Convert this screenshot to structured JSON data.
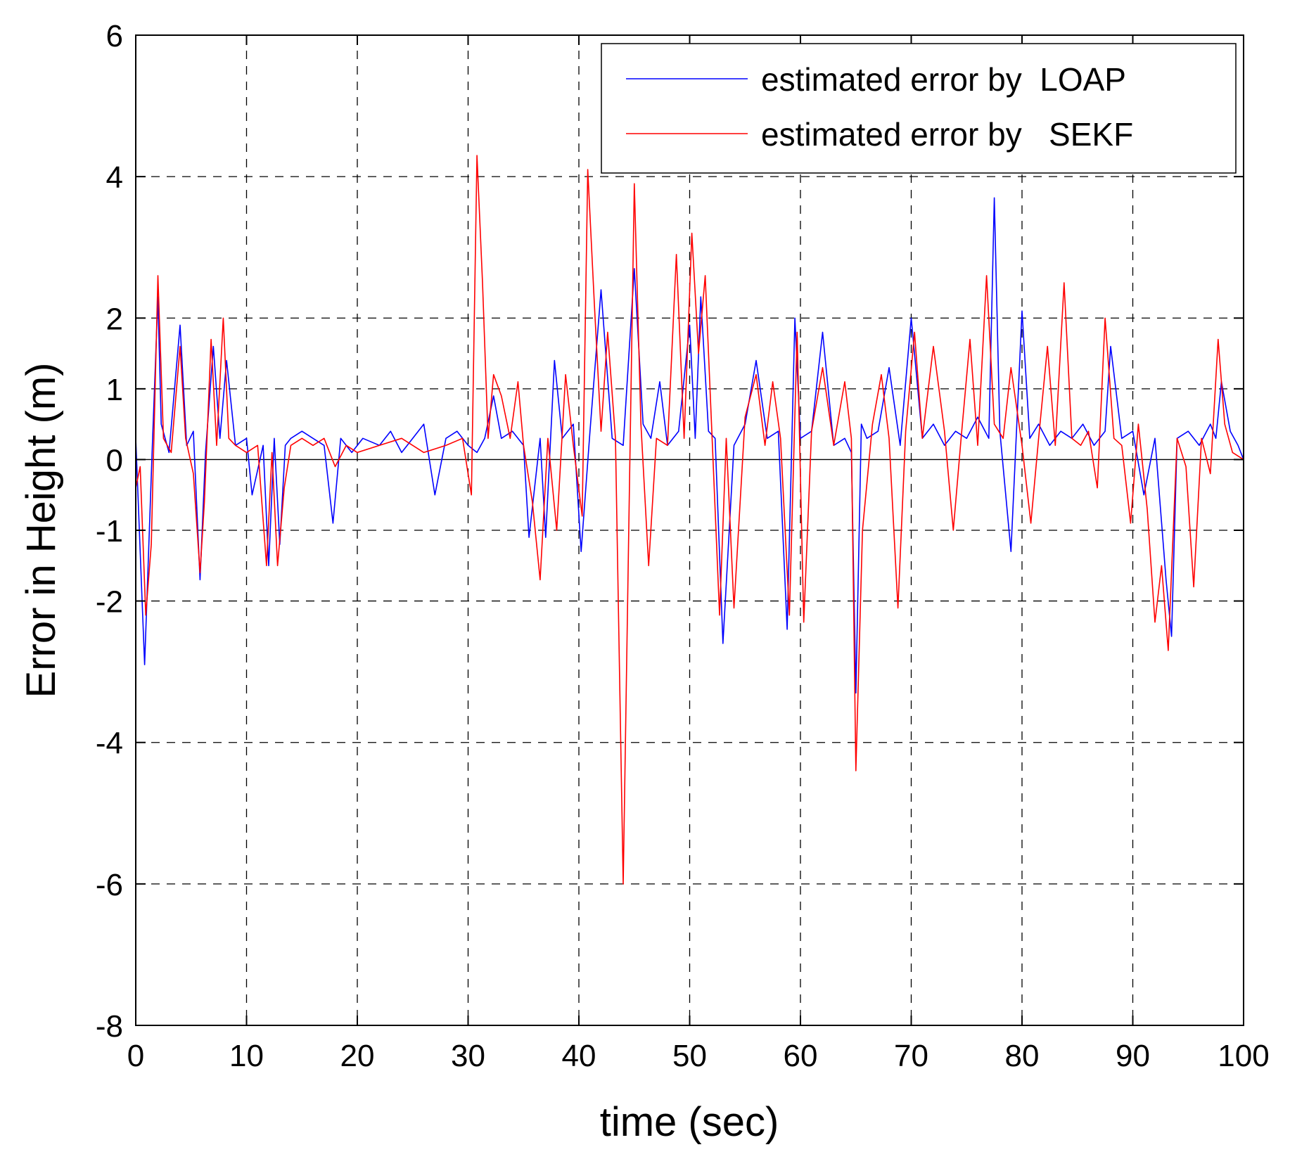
{
  "chart_data": {
    "type": "line",
    "title": "",
    "xlabel": "time (sec)",
    "ylabel": "Error in Height (m)",
    "xlim": [
      0,
      100
    ],
    "ylim": [
      -8,
      6
    ],
    "grid": true,
    "legend_position": "top-right",
    "xticks": [
      0,
      10,
      20,
      30,
      40,
      50,
      60,
      70,
      80,
      90,
      100
    ],
    "yticks": [
      -8,
      -6,
      -4,
      -2,
      -1,
      0,
      1,
      2,
      4,
      6
    ],
    "xtick_labels": [
      "0",
      "10",
      "20",
      "30",
      "40",
      "50",
      "60",
      "70",
      "80",
      "90",
      "100"
    ],
    "ytick_labels": [
      "-8",
      "-6",
      "-4",
      "-2",
      "-1",
      "0",
      "1",
      "2",
      "4",
      "6"
    ],
    "series": [
      {
        "name": "estimated error by LOAP",
        "legend_label": "estimated error by  LOAP",
        "color": "#0000ff",
        "x": [
          0,
          0.8,
          1.5,
          2.0,
          2.3,
          3.0,
          4.0,
          4.6,
          5.2,
          5.8,
          6.3,
          7.0,
          7.6,
          8.2,
          9.0,
          10.0,
          10.5,
          11.5,
          12.0,
          12.5,
          13.0,
          13.5,
          14.0,
          15.0,
          16.0,
          17.0,
          17.8,
          18.5,
          19.5,
          20.5,
          22.0,
          23.0,
          24.0,
          25.0,
          26.0,
          27.0,
          28.0,
          29.0,
          30.0,
          30.8,
          31.5,
          32.3,
          33.0,
          34.0,
          35.0,
          35.5,
          36.5,
          37.0,
          37.8,
          38.5,
          39.5,
          40.2,
          41.0,
          42.0,
          43.0,
          44.0,
          45.0,
          45.8,
          46.5,
          47.3,
          48.0,
          49.0,
          50.0,
          50.5,
          51.0,
          51.7,
          52.3,
          53.0,
          54.0,
          55.0,
          56.0,
          57.0,
          58.0,
          58.8,
          59.5,
          60.0,
          61.0,
          62.0,
          63.0,
          64.0,
          64.6,
          65.0,
          65.5,
          66.0,
          67.0,
          68.0,
          69.0,
          70.0,
          71.0,
          72.0,
          73.0,
          74.0,
          75.0,
          76.0,
          77.0,
          77.5,
          78.0,
          79.0,
          80.0,
          80.7,
          81.5,
          82.5,
          83.5,
          84.5,
          85.5,
          86.5,
          87.5,
          88.0,
          89.0,
          90.0,
          91.0,
          92.0,
          93.0,
          93.5,
          94.0,
          95.0,
          96.0,
          97.0,
          97.5,
          98.0,
          98.8,
          99.5,
          100.0
        ],
        "y": [
          0.3,
          -2.9,
          0.2,
          2.3,
          0.5,
          0.1,
          1.9,
          0.2,
          0.4,
          -1.7,
          0.1,
          1.6,
          0.3,
          1.4,
          0.2,
          0.3,
          -0.5,
          0.2,
          -1.5,
          0.3,
          -1.2,
          0.2,
          0.3,
          0.4,
          0.3,
          0.2,
          -0.9,
          0.3,
          0.1,
          0.3,
          0.2,
          0.4,
          0.1,
          0.3,
          0.5,
          -0.5,
          0.3,
          0.4,
          0.2,
          0.1,
          0.3,
          0.9,
          0.3,
          0.4,
          0.2,
          -1.1,
          0.3,
          -1.1,
          1.4,
          0.3,
          0.5,
          -1.3,
          0.4,
          2.4,
          0.3,
          0.2,
          2.7,
          0.5,
          0.3,
          1.1,
          0.2,
          0.4,
          1.9,
          0.3,
          2.3,
          0.4,
          0.3,
          -2.6,
          0.2,
          0.5,
          1.4,
          0.3,
          0.4,
          -2.4,
          2.0,
          0.3,
          0.4,
          1.8,
          0.2,
          0.3,
          0.1,
          -3.3,
          0.5,
          0.3,
          0.4,
          1.3,
          0.2,
          2.0,
          0.3,
          0.5,
          0.2,
          0.4,
          0.3,
          0.6,
          0.3,
          3.7,
          0.4,
          -1.3,
          2.1,
          0.3,
          0.5,
          0.2,
          0.4,
          0.3,
          0.5,
          0.2,
          0.4,
          1.6,
          0.3,
          0.4,
          -0.5,
          0.3,
          -1.7,
          -2.5,
          0.3,
          0.4,
          0.2,
          0.5,
          0.3,
          1.1,
          0.4,
          0.2,
          0.0
        ]
      },
      {
        "name": "estimated error by SEKF",
        "legend_label": "estimated error by   SEKF",
        "color": "#ff0000",
        "x": [
          0,
          0.4,
          0.9,
          1.4,
          2.0,
          2.5,
          3.2,
          4.0,
          4.5,
          5.2,
          5.8,
          6.2,
          6.8,
          7.3,
          7.9,
          8.4,
          9.0,
          10.0,
          11.0,
          11.8,
          12.3,
          12.8,
          13.4,
          14.0,
          15.0,
          16.0,
          17.0,
          18.0,
          19.0,
          20.0,
          22.0,
          24.0,
          26.0,
          28.0,
          29.5,
          30.3,
          30.8,
          31.3,
          31.8,
          32.3,
          33.0,
          33.8,
          34.5,
          35.0,
          35.8,
          36.5,
          37.2,
          38.0,
          38.8,
          39.5,
          40.3,
          40.8,
          41.4,
          42.0,
          42.6,
          43.3,
          44.0,
          44.5,
          45.0,
          45.6,
          46.3,
          47.0,
          48.0,
          48.8,
          49.5,
          50.2,
          50.8,
          51.4,
          52.0,
          52.7,
          53.3,
          54.0,
          55.0,
          56.0,
          56.8,
          57.5,
          58.2,
          59.0,
          59.7,
          60.3,
          61.0,
          62.0,
          63.0,
          64.0,
          64.6,
          65.0,
          65.6,
          66.5,
          67.3,
          68.0,
          68.8,
          69.5,
          70.3,
          71.0,
          72.0,
          73.0,
          73.8,
          74.5,
          75.3,
          76.0,
          76.8,
          77.5,
          78.3,
          79.0,
          80.0,
          80.8,
          81.5,
          82.3,
          83.0,
          83.8,
          84.5,
          85.3,
          86.0,
          86.8,
          87.5,
          88.3,
          89.0,
          89.8,
          90.5,
          91.3,
          92.0,
          92.6,
          93.2,
          94.0,
          94.8,
          95.5,
          96.2,
          97.0,
          97.7,
          98.3,
          99.0,
          100.0
        ],
        "y": [
          -0.4,
          -0.1,
          -2.2,
          -1.2,
          2.6,
          0.3,
          0.1,
          1.6,
          0.3,
          -0.2,
          -1.6,
          -0.6,
          1.7,
          0.2,
          2.0,
          0.3,
          0.2,
          0.1,
          0.2,
          -1.5,
          0.1,
          -1.5,
          -0.4,
          0.2,
          0.3,
          0.2,
          0.3,
          -0.1,
          0.2,
          0.1,
          0.2,
          0.3,
          0.1,
          0.2,
          0.3,
          -0.5,
          4.3,
          2.5,
          0.3,
          1.2,
          0.9,
          0.3,
          1.1,
          0.2,
          -0.6,
          -1.7,
          0.3,
          -1.0,
          1.2,
          0.2,
          -0.8,
          4.1,
          2.2,
          0.4,
          1.8,
          0.3,
          -6.0,
          -1.0,
          3.9,
          0.5,
          -1.5,
          0.3,
          0.2,
          2.9,
          0.3,
          3.2,
          1.5,
          2.6,
          0.4,
          -2.2,
          0.3,
          -2.1,
          0.6,
          1.2,
          0.2,
          1.1,
          0.3,
          -2.2,
          1.8,
          -2.3,
          0.4,
          1.3,
          0.2,
          1.1,
          0.3,
          -4.4,
          -1.0,
          0.5,
          1.2,
          0.3,
          -2.1,
          0.4,
          1.8,
          0.3,
          1.6,
          0.4,
          -1.0,
          0.3,
          1.7,
          0.2,
          2.6,
          0.5,
          0.3,
          1.3,
          0.2,
          -0.9,
          0.3,
          1.6,
          0.2,
          2.5,
          0.3,
          0.2,
          0.4,
          -0.4,
          2.0,
          0.3,
          0.2,
          -0.9,
          0.5,
          -0.7,
          -2.3,
          -1.5,
          -2.7,
          0.3,
          -0.1,
          -1.8,
          0.3,
          -0.2,
          1.7,
          0.5,
          0.1,
          0.0
        ]
      }
    ]
  }
}
